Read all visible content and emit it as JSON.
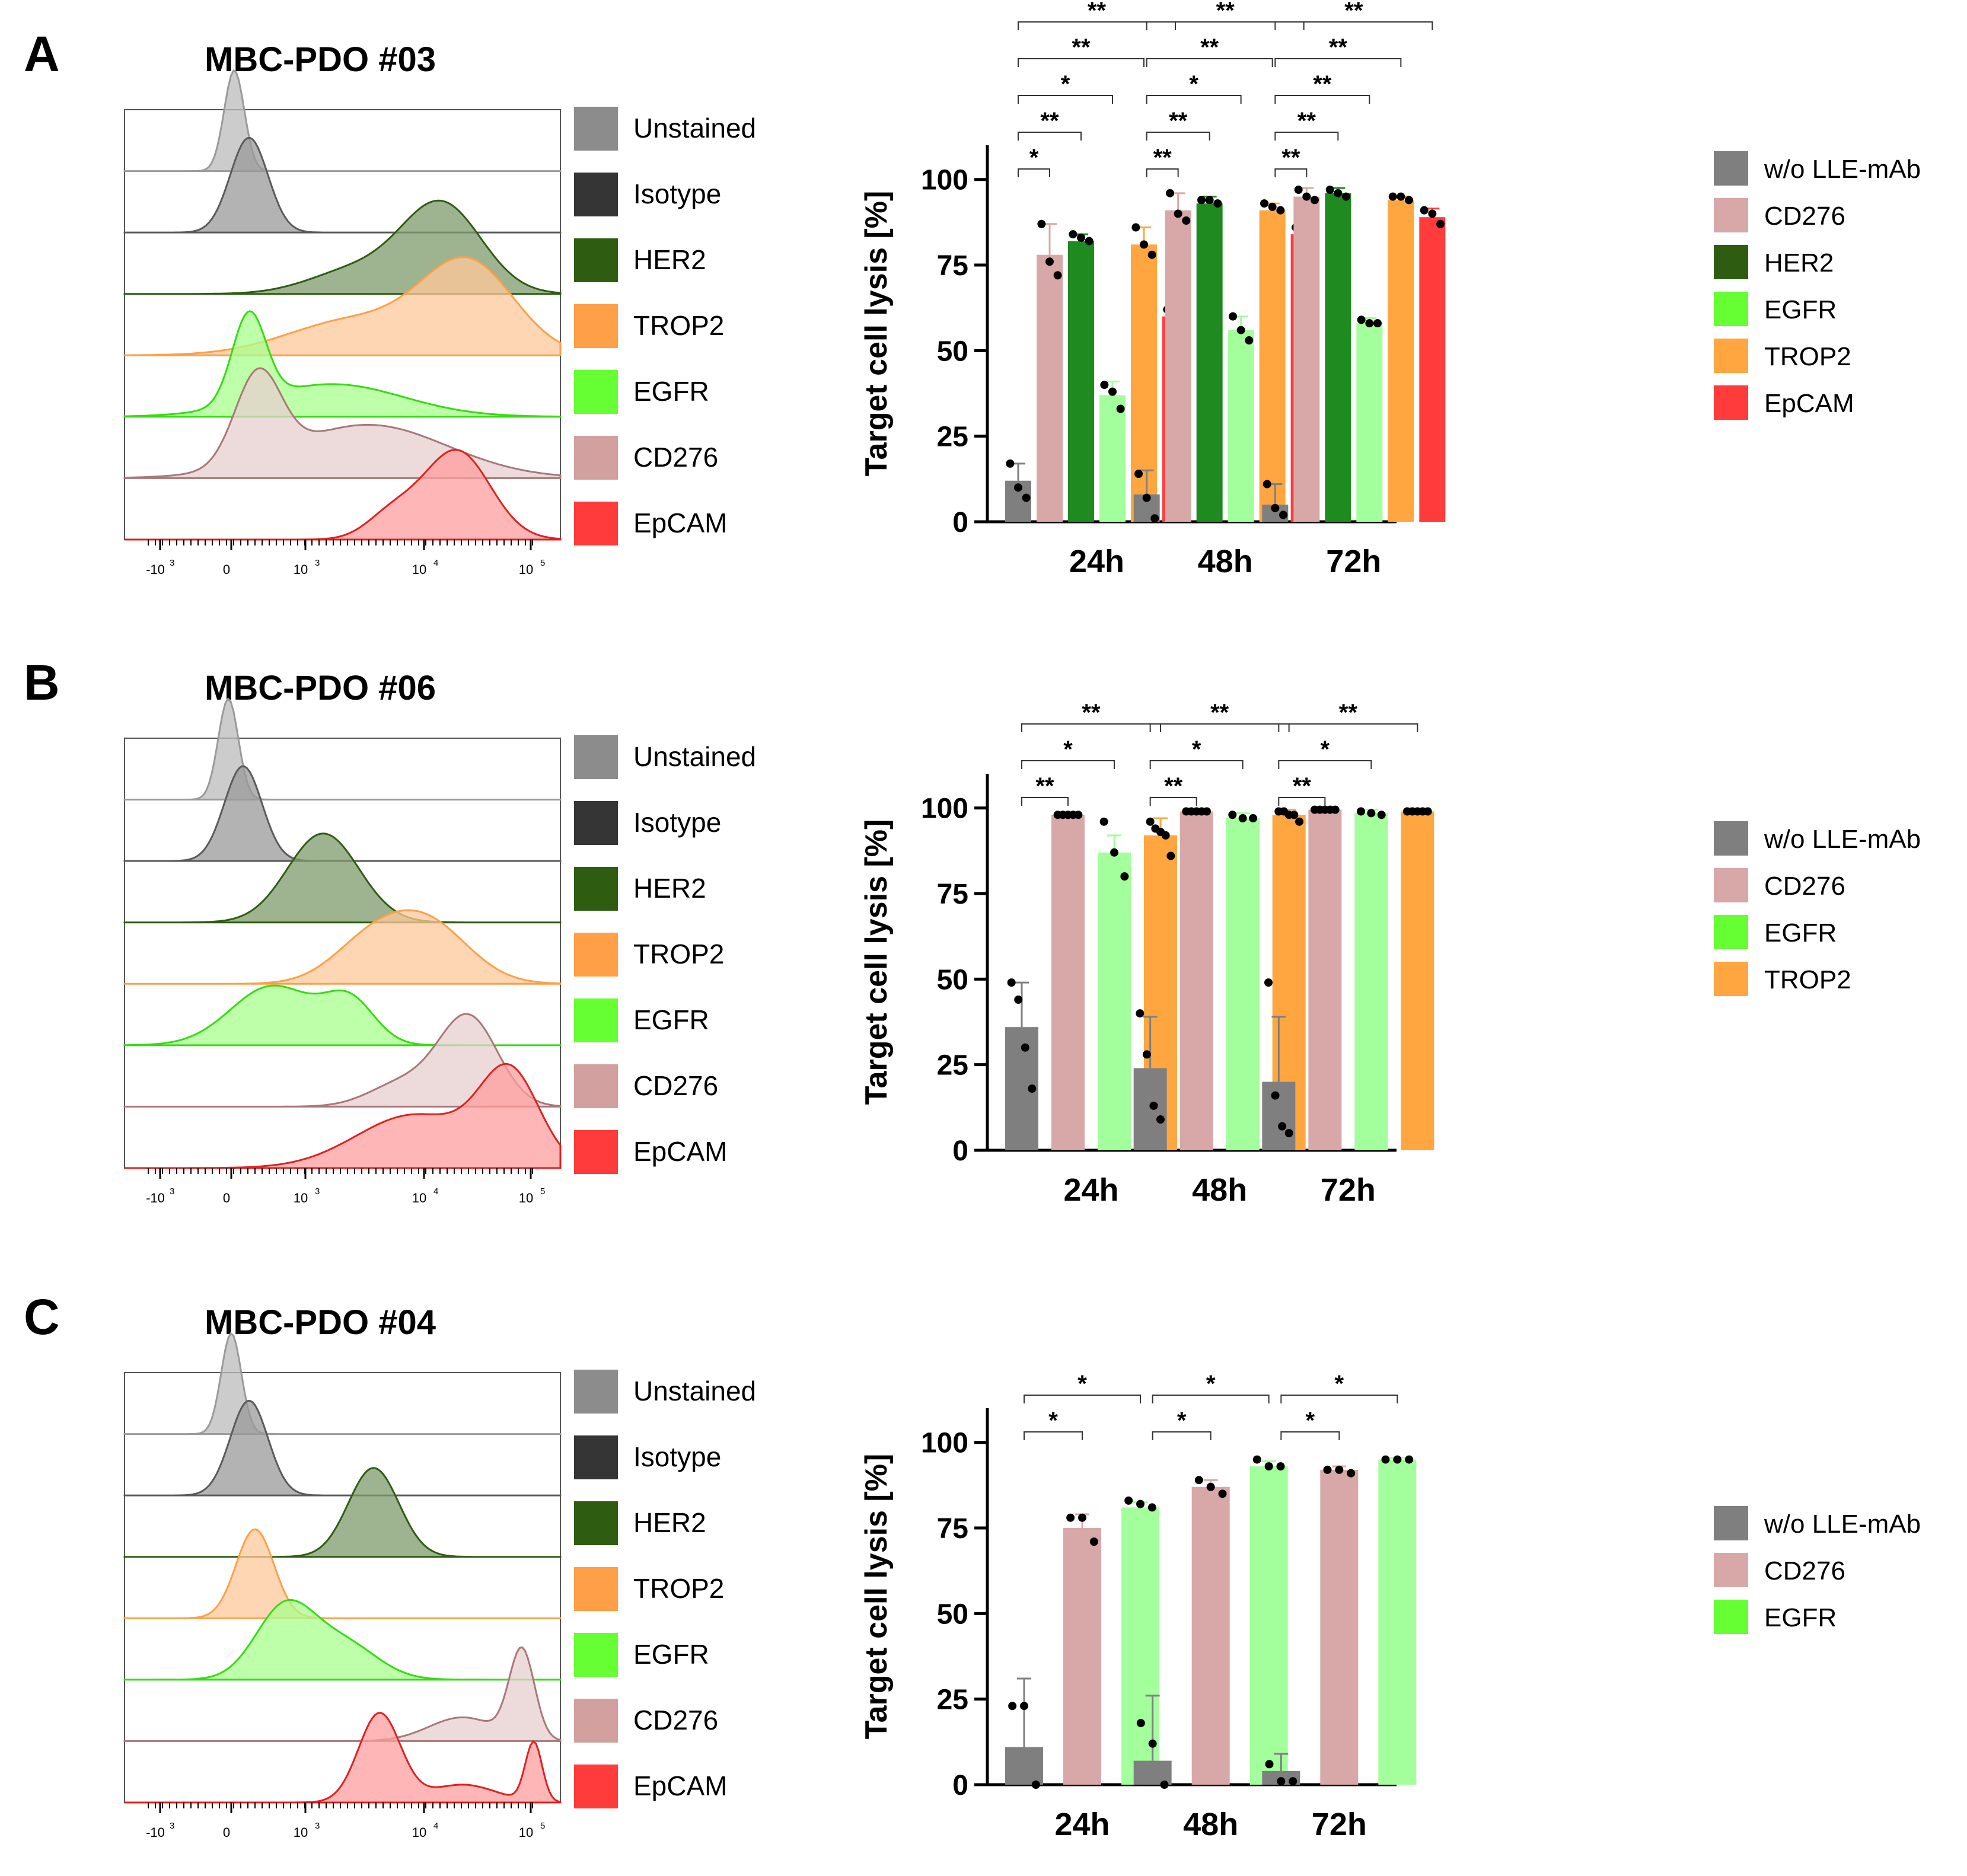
{
  "colors": {
    "unstained": "#8c8c8c",
    "isotype": "#353535",
    "her2": "#2e5d12",
    "trop2": "#ff9f47",
    "egfr": "#66ff33",
    "cd276": "#d2a09f",
    "epcam": "#ff3b3b",
    "bar_wo": "#7f7f7f",
    "bar_cd276": "#d7a8a7",
    "bar_her2": "#1f8a1f",
    "bar_egfr": "#a3ff9c",
    "bar_trop2": "#ffa640",
    "bar_epcam": "#ff3b3b",
    "legend_wo": "#7f7f7f",
    "legend_cd276": "#d7a8a7",
    "legend_her2": "#2e5d12",
    "legend_egfr": "#66ff33",
    "legend_trop2": "#ffa640",
    "legend_epcam": "#ff3b3b"
  },
  "panels": [
    {
      "letter": "A",
      "title": "MBC-PDO #03",
      "histogram_legend": [
        "Unstained",
        "Isotype",
        "HER2",
        "TROP2",
        "EGFR",
        "CD276",
        "EpCAM"
      ],
      "x_ticks": [
        "-10",
        "0",
        "10",
        "10",
        "10"
      ],
      "x_tick_exps": [
        "3",
        "3",
        "4",
        "5"
      ],
      "bar_legend": [
        "w/o LLE-mAb",
        "CD276",
        "HER2",
        "EGFR",
        "TROP2",
        "EpCAM"
      ]
    },
    {
      "letter": "B",
      "title": "MBC-PDO #06",
      "histogram_legend": [
        "Unstained",
        "Isotype",
        "HER2",
        "TROP2",
        "EGFR",
        "CD276",
        "EpCAM"
      ],
      "x_ticks": [
        "-10",
        "0",
        "10",
        "10",
        "10"
      ],
      "x_tick_exps": [
        "3",
        "3",
        "4",
        "5"
      ],
      "bar_legend": [
        "w/o LLE-mAb",
        "CD276",
        "EGFR",
        "TROP2"
      ]
    },
    {
      "letter": "C",
      "title": "MBC-PDO #04",
      "histogram_legend": [
        "Unstained",
        "Isotype",
        "HER2",
        "TROP2",
        "EGFR",
        "CD276",
        "EpCAM"
      ],
      "x_ticks": [
        "-10",
        "0",
        "10",
        "10",
        "10"
      ],
      "x_tick_exps": [
        "3",
        "3",
        "4",
        "5"
      ],
      "bar_legend": [
        "w/o LLE-mAb",
        "CD276",
        "EGFR"
      ]
    }
  ],
  "chart_data": [
    {
      "type": "bar",
      "panel": "A",
      "ylabel": "Target cell lysis [%]",
      "ylim": [
        0,
        110
      ],
      "yticks": [
        0,
        25,
        50,
        75,
        100
      ],
      "categories": [
        "24h",
        "48h",
        "72h"
      ],
      "series": [
        {
          "name": "w/o LLE-mAb",
          "values": [
            12,
            8,
            5
          ],
          "err": [
            5,
            7,
            6
          ],
          "points": [
            [
              17,
              10,
              7
            ],
            [
              14,
              7,
              1
            ],
            [
              11,
              4,
              2
            ]
          ]
        },
        {
          "name": "CD276",
          "values": [
            78,
            91,
            95
          ],
          "err": [
            9,
            5,
            2.5
          ],
          "points": [
            [
              87,
              76,
              72
            ],
            [
              96,
              90,
              88
            ],
            [
              97,
              95,
              94
            ]
          ]
        },
        {
          "name": "HER2",
          "values": [
            82,
            93,
            96
          ],
          "err": [
            2,
            2,
            1.5
          ],
          "points": [
            [
              84,
              83,
              82
            ],
            [
              94,
              94,
              93
            ],
            [
              97,
              96,
              95
            ]
          ]
        },
        {
          "name": "EGFR",
          "values": [
            37,
            56,
            58
          ],
          "err": [
            4,
            4,
            1.5
          ],
          "points": [
            [
              40,
              38,
              33
            ],
            [
              60,
              56,
              53
            ],
            [
              59,
              58,
              58
            ]
          ]
        },
        {
          "name": "TROP2",
          "values": [
            81,
            91,
            94
          ],
          "err": [
            5,
            2,
            1
          ],
          "points": [
            [
              86,
              81,
              78
            ],
            [
              93,
              92,
              91
            ],
            [
              95,
              95,
              94
            ]
          ]
        },
        {
          "name": "EpCAM",
          "values": [
            60,
            84,
            89
          ],
          "err": [
            2,
            2,
            2.5
          ],
          "points": [
            [
              62,
              61,
              60
            ],
            [
              86,
              84,
              83
            ],
            [
              91,
              90,
              87
            ]
          ]
        }
      ],
      "significance": [
        {
          "group": "24h",
          "from": 0,
          "to": 1,
          "label": "*"
        },
        {
          "group": "24h",
          "from": 0,
          "to": 2,
          "label": "**"
        },
        {
          "group": "24h",
          "from": 0,
          "to": 3,
          "label": "*"
        },
        {
          "group": "24h",
          "from": 0,
          "to": 4,
          "label": "**"
        },
        {
          "group": "24h",
          "from": 0,
          "to": 5,
          "label": "**"
        },
        {
          "group": "48h",
          "from": 0,
          "to": 1,
          "label": "**"
        },
        {
          "group": "48h",
          "from": 0,
          "to": 2,
          "label": "**"
        },
        {
          "group": "48h",
          "from": 0,
          "to": 3,
          "label": "*"
        },
        {
          "group": "48h",
          "from": 0,
          "to": 4,
          "label": "**"
        },
        {
          "group": "48h",
          "from": 0,
          "to": 5,
          "label": "**"
        },
        {
          "group": "72h",
          "from": 0,
          "to": 1,
          "label": "**"
        },
        {
          "group": "72h",
          "from": 0,
          "to": 2,
          "label": "**"
        },
        {
          "group": "72h",
          "from": 0,
          "to": 3,
          "label": "**"
        },
        {
          "group": "72h",
          "from": 0,
          "to": 4,
          "label": "**"
        },
        {
          "group": "72h",
          "from": 0,
          "to": 5,
          "label": "**"
        }
      ]
    },
    {
      "type": "bar",
      "panel": "B",
      "ylabel": "Target cell lysis [%]",
      "ylim": [
        0,
        110
      ],
      "yticks": [
        0,
        25,
        50,
        75,
        100
      ],
      "categories": [
        "24h",
        "48h",
        "72h"
      ],
      "series": [
        {
          "name": "w/o LLE-mAb",
          "values": [
            36,
            24,
            20
          ],
          "err": [
            13,
            15,
            19
          ],
          "points": [
            [
              49,
              44,
              30,
              18
            ],
            [
              40,
              28,
              13,
              9
            ],
            [
              49,
              16,
              7,
              5
            ]
          ]
        },
        {
          "name": "CD276",
          "values": [
            98,
            99,
            99.5
          ],
          "err": [
            0.5,
            0.5,
            0.5
          ],
          "points": [
            [
              98,
              98,
              98,
              98,
              98
            ],
            [
              99,
              99,
              99,
              99,
              99
            ],
            [
              99.5,
              99.5,
              99.5,
              99.5,
              99.5
            ]
          ]
        },
        {
          "name": "EGFR",
          "values": [
            87,
            97,
            98.5
          ],
          "err": [
            5,
            1.5,
            1
          ],
          "points": [
            [
              96,
              87,
              80
            ],
            [
              98,
              97,
              97
            ],
            [
              99,
              98.5,
              98
            ]
          ]
        },
        {
          "name": "TROP2",
          "values": [
            92,
            98,
            99
          ],
          "err": [
            5,
            1.5,
            0.5
          ],
          "points": [
            [
              96,
              94,
              93,
              92,
              86
            ],
            [
              99,
              99,
              98,
              98,
              96
            ],
            [
              99,
              99,
              99,
              99,
              99
            ]
          ]
        }
      ],
      "significance": [
        {
          "group": "24h",
          "from": 0,
          "to": 1,
          "label": "**"
        },
        {
          "group": "24h",
          "from": 0,
          "to": 2,
          "label": "*"
        },
        {
          "group": "24h",
          "from": 0,
          "to": 3,
          "label": "**"
        },
        {
          "group": "48h",
          "from": 0,
          "to": 1,
          "label": "**"
        },
        {
          "group": "48h",
          "from": 0,
          "to": 2,
          "label": "*"
        },
        {
          "group": "48h",
          "from": 0,
          "to": 3,
          "label": "**"
        },
        {
          "group": "72h",
          "from": 0,
          "to": 1,
          "label": "**"
        },
        {
          "group": "72h",
          "from": 0,
          "to": 2,
          "label": "*"
        },
        {
          "group": "72h",
          "from": 0,
          "to": 3,
          "label": "**"
        }
      ]
    },
    {
      "type": "bar",
      "panel": "C",
      "ylabel": "Target cell lysis [%]",
      "ylim": [
        0,
        110
      ],
      "yticks": [
        0,
        25,
        50,
        75,
        100
      ],
      "categories": [
        "24h",
        "48h",
        "72h"
      ],
      "series": [
        {
          "name": "w/o LLE-mAb",
          "values": [
            11,
            7,
            4
          ],
          "err": [
            20,
            19,
            5
          ],
          "points": [
            [
              23,
              23,
              0
            ],
            [
              18,
              12,
              0
            ],
            [
              6,
              1,
              1
            ]
          ]
        },
        {
          "name": "CD276",
          "values": [
            75,
            87,
            92
          ],
          "err": [
            4,
            2,
            1
          ],
          "points": [
            [
              78,
              78,
              71
            ],
            [
              89,
              87,
              85
            ],
            [
              92,
              92,
              91
            ]
          ]
        },
        {
          "name": "EGFR",
          "values": [
            81,
            93,
            95
          ],
          "err": [
            1.5,
            1.5,
            0.5
          ],
          "points": [
            [
              83,
              82,
              81
            ],
            [
              95,
              93,
              93
            ],
            [
              95,
              95,
              95
            ]
          ]
        }
      ],
      "significance": [
        {
          "group": "24h",
          "from": 0,
          "to": 1,
          "label": "*"
        },
        {
          "group": "24h",
          "from": 0,
          "to": 2,
          "label": "*"
        },
        {
          "group": "48h",
          "from": 0,
          "to": 1,
          "label": "*"
        },
        {
          "group": "48h",
          "from": 0,
          "to": 2,
          "label": "*"
        },
        {
          "group": "72h",
          "from": 0,
          "to": 1,
          "label": "*"
        },
        {
          "group": "72h",
          "from": 0,
          "to": 2,
          "label": "*"
        }
      ]
    }
  ]
}
